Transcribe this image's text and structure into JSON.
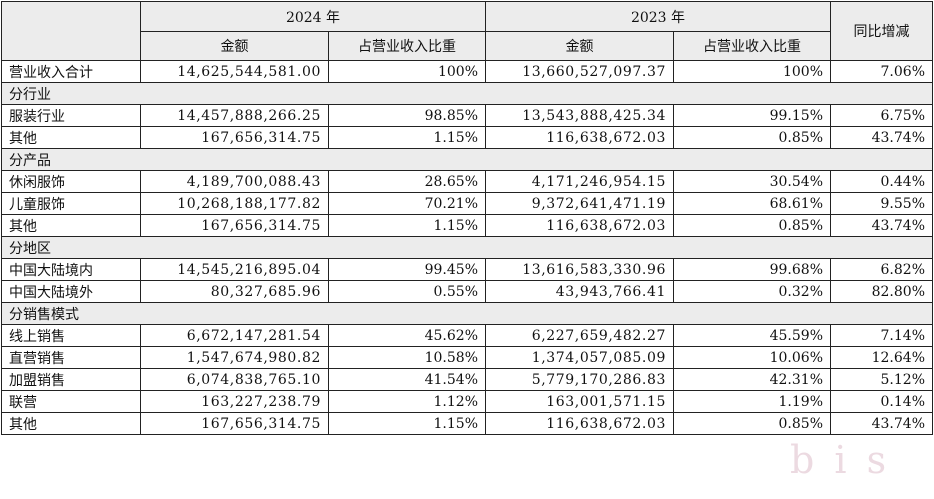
{
  "header": {
    "y2024": "2024 年",
    "y2023": "2023 年",
    "yoy": "同比增减",
    "amount_2024": "金额",
    "share_2024": "占营业收入比重",
    "amount_2023": "金额",
    "share_2023": "占营业收入比重"
  },
  "total": {
    "label": "营业收入合计",
    "amt2024": "14,625,544,581.00",
    "pct2024": "100%",
    "amt2023": "13,660,527,097.37",
    "pct2023": "100%",
    "yoy": "7.06%"
  },
  "sections": [
    {
      "title": "分行业",
      "rows": [
        {
          "label": "服装行业",
          "amt2024": "14,457,888,266.25",
          "pct2024": "98.85%",
          "amt2023": "13,543,888,425.34",
          "pct2023": "99.15%",
          "yoy": "6.75%"
        },
        {
          "label": "其他",
          "amt2024": "167,656,314.75",
          "pct2024": "1.15%",
          "amt2023": "116,638,672.03",
          "pct2023": "0.85%",
          "yoy": "43.74%"
        }
      ]
    },
    {
      "title": "分产品",
      "rows": [
        {
          "label": "休闲服饰",
          "amt2024": "4,189,700,088.43",
          "pct2024": "28.65%",
          "amt2023": "4,171,246,954.15",
          "pct2023": "30.54%",
          "yoy": "0.44%"
        },
        {
          "label": "儿童服饰",
          "amt2024": "10,268,188,177.82",
          "pct2024": "70.21%",
          "amt2023": "9,372,641,471.19",
          "pct2023": "68.61%",
          "yoy": "9.55%"
        },
        {
          "label": "其他",
          "amt2024": "167,656,314.75",
          "pct2024": "1.15%",
          "amt2023": "116,638,672.03",
          "pct2023": "0.85%",
          "yoy": "43.74%"
        }
      ]
    },
    {
      "title": "分地区",
      "rows": [
        {
          "label": "中国大陆境内",
          "amt2024": "14,545,216,895.04",
          "pct2024": "99.45%",
          "amt2023": "13,616,583,330.96",
          "pct2023": "99.68%",
          "yoy": "6.82%"
        },
        {
          "label": "中国大陆境外",
          "amt2024": "80,327,685.96",
          "pct2024": "0.55%",
          "amt2023": "43,943,766.41",
          "pct2023": "0.32%",
          "yoy": "82.80%"
        }
      ]
    },
    {
      "title": "分销售模式",
      "rows": [
        {
          "label": "线上销售",
          "amt2024": "6,672,147,281.54",
          "pct2024": "45.62%",
          "amt2023": "6,227,659,482.27",
          "pct2023": "45.59%",
          "yoy": "7.14%"
        },
        {
          "label": "直营销售",
          "amt2024": "1,547,674,980.82",
          "pct2024": "10.58%",
          "amt2023": "1,374,057,085.09",
          "pct2023": "10.06%",
          "yoy": "12.64%"
        },
        {
          "label": "加盟销售",
          "amt2024": "6,074,838,765.10",
          "pct2024": "41.54%",
          "amt2023": "5,779,170,286.83",
          "pct2023": "42.31%",
          "yoy": "5.12%"
        },
        {
          "label": "联营",
          "amt2024": "163,227,238.79",
          "pct2024": "1.12%",
          "amt2023": "163,001,571.15",
          "pct2023": "1.19%",
          "yoy": "0.14%"
        },
        {
          "label": "其他",
          "amt2024": "167,656,314.75",
          "pct2024": "1.15%",
          "amt2023": "116,638,672.03",
          "pct2023": "0.85%",
          "yoy": "43.74%"
        }
      ]
    }
  ],
  "watermark": "b  i  s"
}
